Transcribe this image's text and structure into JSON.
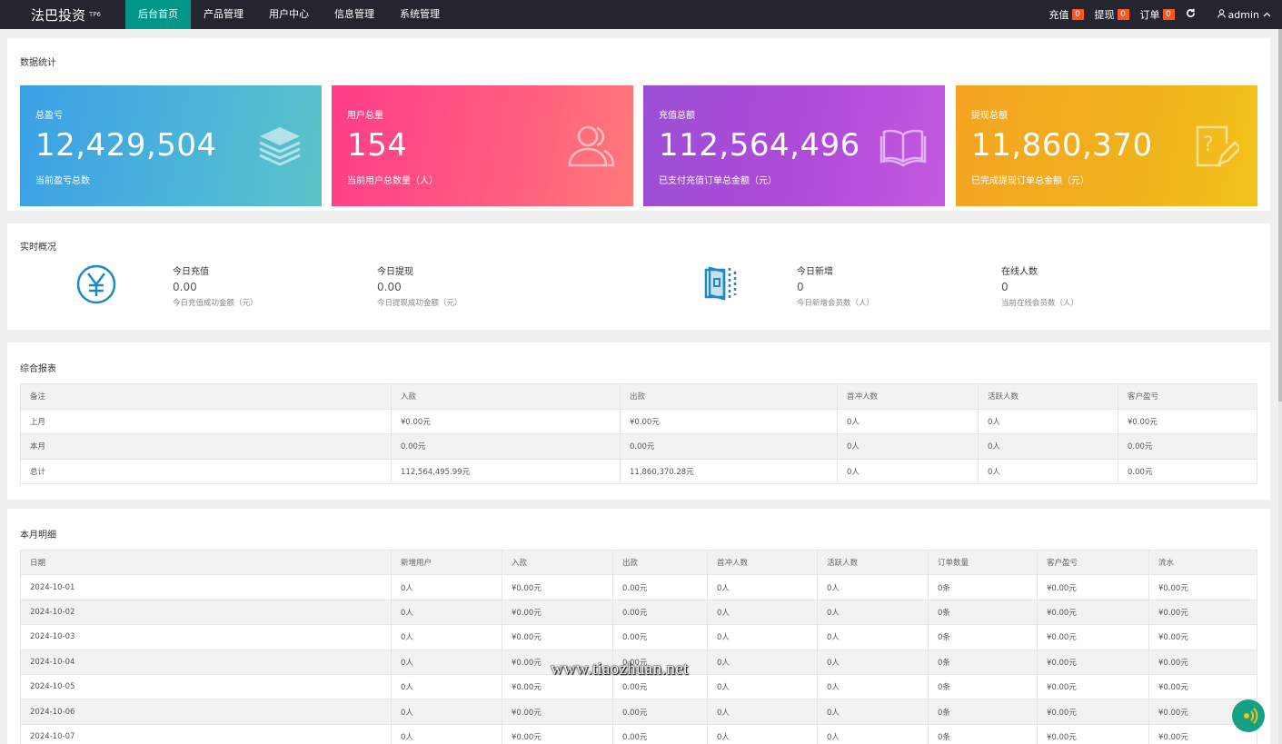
{
  "header": {
    "logo": "法巴投资",
    "logo_tag": "TP6",
    "nav": [
      "后台首页",
      "产品管理",
      "用户中心",
      "信息管理",
      "系统管理"
    ],
    "right": {
      "recharge_label": "充值",
      "recharge_count": "0",
      "withdraw_label": "提现",
      "withdraw_count": "0",
      "order_label": "订单",
      "order_count": "0",
      "refresh_icon": "refresh-icon",
      "user": "admin"
    }
  },
  "stats": {
    "title": "数据统计",
    "cards": [
      {
        "title": "总盈亏",
        "value": "12,429,504",
        "desc": "当前盈亏总数",
        "icon": "layers-icon",
        "color": "#3aa0e6"
      },
      {
        "title": "用户总量",
        "value": "154",
        "desc": "当前用户总数量（人）",
        "icon": "users-icon",
        "color": "#ff4f86"
      },
      {
        "title": "充值总额",
        "value": "112,564,496",
        "desc": "已支付充值订单总金额（元）",
        "icon": "book-icon",
        "color": "#a94ed8"
      },
      {
        "title": "提现总额",
        "value": "11,860,370",
        "desc": "已完成提现订单总金额（元）",
        "icon": "question-edit-icon",
        "color": "#f2b01e"
      }
    ]
  },
  "realtime": {
    "title": "实时概况",
    "items": [
      {
        "label": "今日充值",
        "value": "0.00",
        "desc": "今日充值成功金额（元）"
      },
      {
        "label": "今日提现",
        "value": "0.00",
        "desc": "今日提现成功金额（元）"
      },
      {
        "label": "今日新增",
        "value": "0",
        "desc": "今日新增会员数（人）"
      },
      {
        "label": "在线人数",
        "value": "0",
        "desc": "当前在线会员数（人）"
      }
    ]
  },
  "report": {
    "title": "综合报表",
    "headers": [
      "备注",
      "入款",
      "出款",
      "首冲人数",
      "活跃人数",
      "客户盈亏"
    ],
    "rows": [
      [
        "上月",
        "¥0.00元",
        "¥0.00元",
        "0人",
        "0人",
        "¥0.00元"
      ],
      [
        "本月",
        "0.00元",
        "0.00元",
        "0人",
        "0人",
        "0.00元"
      ],
      [
        "总计",
        "112,564,495.99元",
        "11,860,370.28元",
        "0人",
        "0人",
        "0.00元"
      ]
    ]
  },
  "monthly": {
    "title": "本月明细",
    "headers": [
      "日期",
      "新增用户",
      "入款",
      "出款",
      "首冲人数",
      "活跃人数",
      "订单数量",
      "客户盈亏",
      "流水"
    ],
    "rows": [
      [
        "2024-10-01",
        "0人",
        "¥0.00元",
        "0.00元",
        "0人",
        "0人",
        "0条",
        "¥0.00元",
        "¥0.00元"
      ],
      [
        "2024-10-02",
        "0人",
        "¥0.00元",
        "0.00元",
        "0人",
        "0人",
        "0条",
        "¥0.00元",
        "¥0.00元"
      ],
      [
        "2024-10-03",
        "0人",
        "¥0.00元",
        "0.00元",
        "0人",
        "0人",
        "0条",
        "¥0.00元",
        "¥0.00元"
      ],
      [
        "2024-10-04",
        "0人",
        "¥0.00元",
        "0.00元",
        "0人",
        "0人",
        "0条",
        "¥0.00元",
        "¥0.00元"
      ],
      [
        "2024-10-05",
        "0人",
        "¥0.00元",
        "0.00元",
        "0人",
        "0人",
        "0条",
        "¥0.00元",
        "¥0.00元"
      ],
      [
        "2024-10-06",
        "0人",
        "¥0.00元",
        "0.00元",
        "0人",
        "0人",
        "0条",
        "¥0.00元",
        "¥0.00元"
      ],
      [
        "2024-10-07",
        "0人",
        "¥0.00元",
        "0.00元",
        "0人",
        "0人",
        "0条",
        "¥0.00元",
        "¥0.00元"
      ]
    ]
  },
  "watermark": "www.tiaozhuan.net"
}
